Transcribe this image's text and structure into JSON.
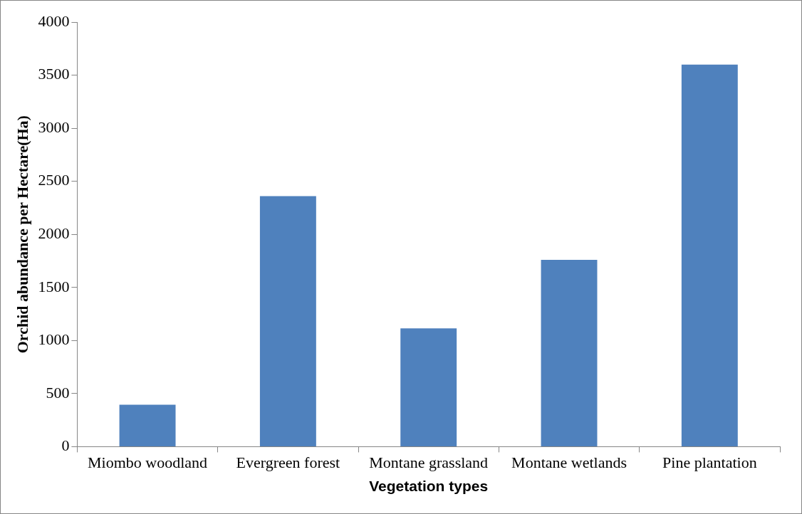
{
  "chart_data": {
    "type": "bar",
    "xlabel": "Vegetation types",
    "ylabel": "Orchid abundance per Hectare(Ha)",
    "categories": [
      "Miombo woodland",
      "Evergreen forest",
      "Montane grassland",
      "Montane wetlands",
      "Pine plantation"
    ],
    "values": [
      395,
      2360,
      1115,
      1760,
      3600
    ],
    "color": "#4f81bd",
    "ylim": [
      0,
      4000
    ],
    "yticks": [
      0,
      500,
      1000,
      1500,
      2000,
      2500,
      3000,
      3500,
      4000
    ],
    "grid": false,
    "legend": false
  }
}
